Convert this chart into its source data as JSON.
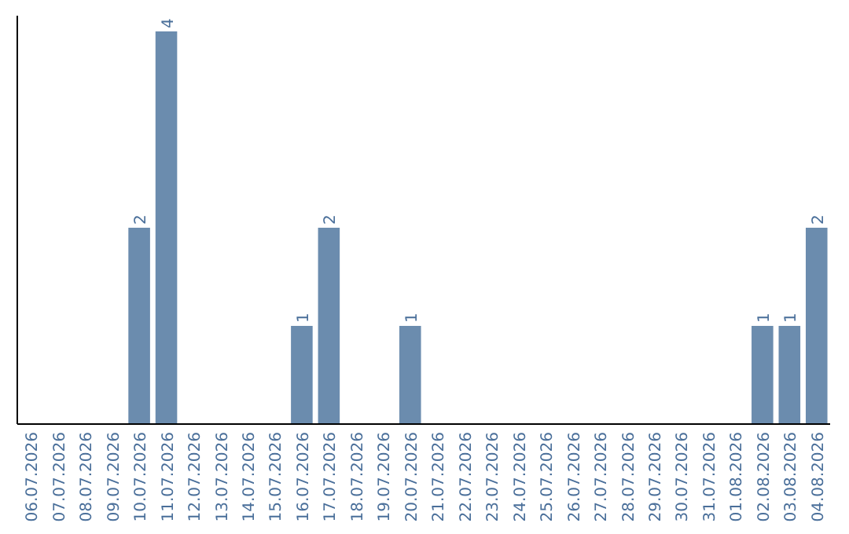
{
  "chart_data": {
    "type": "bar",
    "categories": [
      "06.07.2026",
      "07.07.2026",
      "08.07.2026",
      "09.07.2026",
      "10.07.2026",
      "11.07.2026",
      "12.07.2026",
      "13.07.2026",
      "14.07.2026",
      "15.07.2026",
      "16.07.2026",
      "17.07.2026",
      "18.07.2026",
      "19.07.2026",
      "20.07.2026",
      "21.07.2026",
      "22.07.2026",
      "23.07.2026",
      "24.07.2026",
      "25.07.2026",
      "26.07.2026",
      "27.07.2026",
      "28.07.2026",
      "29.07.2026",
      "30.07.2026",
      "31.07.2026",
      "01.08.2026",
      "02.08.2026",
      "03.08.2026",
      "04.08.2026"
    ],
    "values": [
      0,
      0,
      0,
      0,
      2,
      4,
      0,
      0,
      0,
      0,
      1,
      2,
      0,
      0,
      1,
      0,
      0,
      0,
      0,
      0,
      0,
      0,
      0,
      0,
      0,
      0,
      0,
      1,
      1,
      2
    ],
    "value_labels": [
      null,
      null,
      null,
      null,
      "2",
      "4",
      null,
      null,
      null,
      null,
      "1",
      "2",
      null,
      null,
      "1",
      null,
      null,
      null,
      null,
      null,
      null,
      null,
      null,
      null,
      null,
      null,
      null,
      "1",
      "1",
      "2"
    ],
    "color": "#6b8cae",
    "ylim": [
      0,
      4.16
    ],
    "tick_labels": "x"
  }
}
